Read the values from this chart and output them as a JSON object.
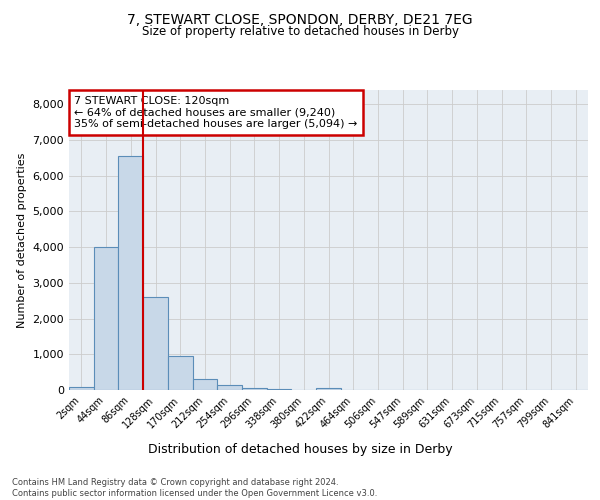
{
  "title1": "7, STEWART CLOSE, SPONDON, DERBY, DE21 7EG",
  "title2": "Size of property relative to detached houses in Derby",
  "xlabel": "Distribution of detached houses by size in Derby",
  "ylabel": "Number of detached properties",
  "bin_labels": [
    "2sqm",
    "44sqm",
    "86sqm",
    "128sqm",
    "170sqm",
    "212sqm",
    "254sqm",
    "296sqm",
    "338sqm",
    "380sqm",
    "422sqm",
    "464sqm",
    "506sqm",
    "547sqm",
    "589sqm",
    "631sqm",
    "673sqm",
    "715sqm",
    "757sqm",
    "799sqm",
    "841sqm"
  ],
  "bar_values": [
    80,
    4000,
    6550,
    2600,
    950,
    310,
    130,
    60,
    20,
    0,
    60,
    0,
    0,
    0,
    0,
    0,
    0,
    0,
    0,
    0,
    0
  ],
  "bar_color": "#c8d8e8",
  "bar_edge_color": "#5b8db8",
  "grid_color": "#cccccc",
  "bg_color": "#e8eef4",
  "annotation_text": "7 STEWART CLOSE: 120sqm\n← 64% of detached houses are smaller (9,240)\n35% of semi-detached houses are larger (5,094) →",
  "annotation_box_color": "#ffffff",
  "annotation_box_edge": "#cc0000",
  "vline_x": 2.5,
  "vline_color": "#cc0000",
  "ylim": [
    0,
    8400
  ],
  "yticks": [
    0,
    1000,
    2000,
    3000,
    4000,
    5000,
    6000,
    7000,
    8000
  ],
  "footer": "Contains HM Land Registry data © Crown copyright and database right 2024.\nContains public sector information licensed under the Open Government Licence v3.0."
}
